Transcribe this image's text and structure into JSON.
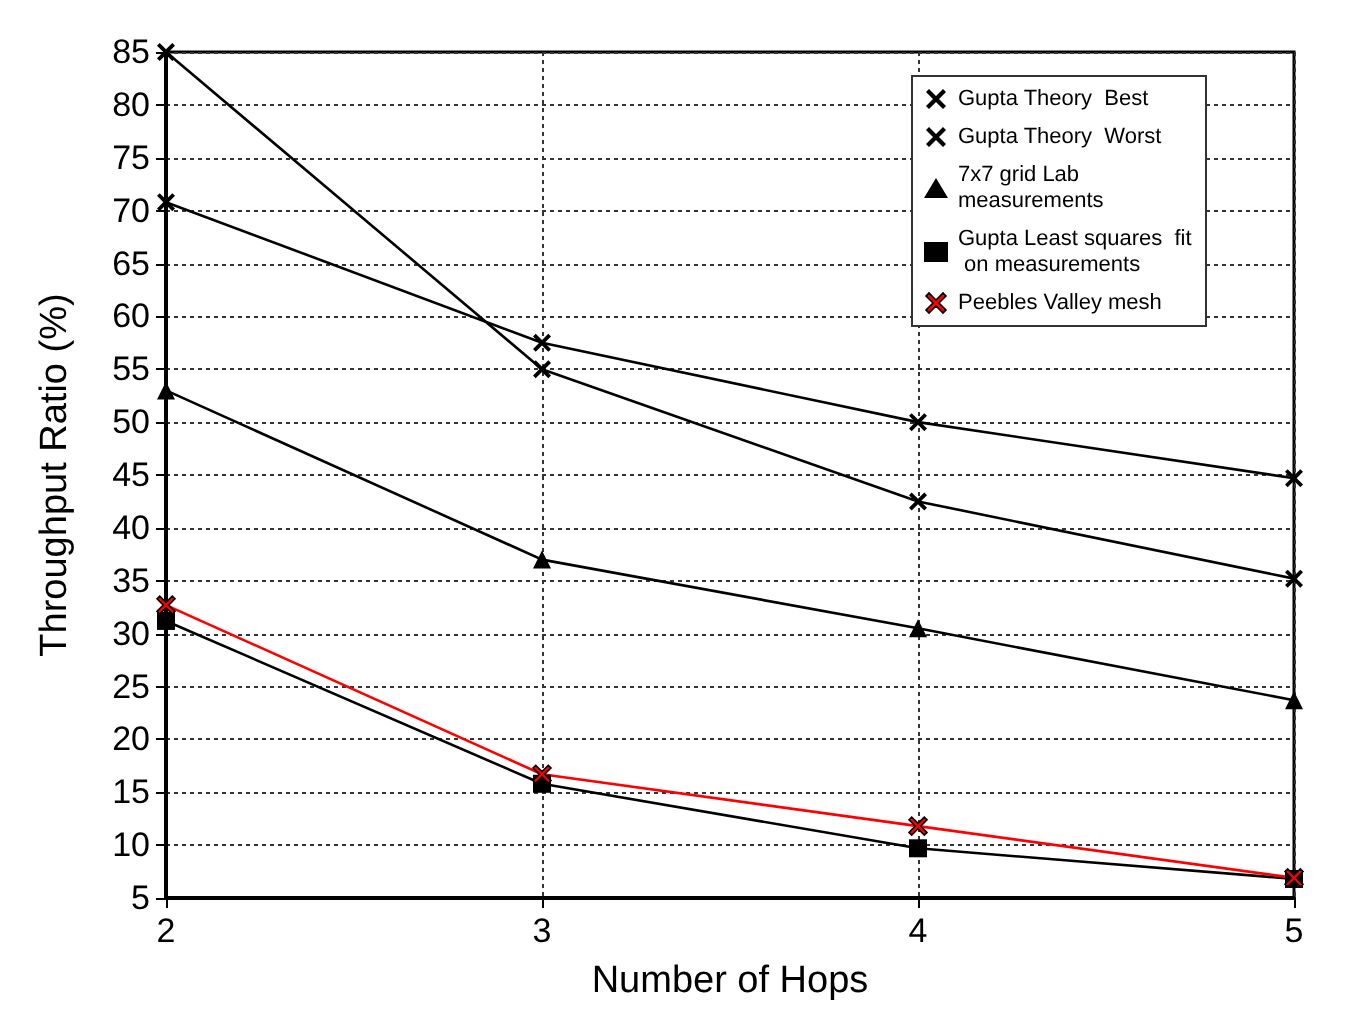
{
  "chart_data": {
    "type": "line",
    "xlabel": "Number of Hops",
    "ylabel": "Throughput Ratio (%)",
    "x": [
      2,
      3,
      4,
      5
    ],
    "series": [
      {
        "name": "Gupta Theory  Best",
        "color": "#000000",
        "marker": "cross",
        "values": [
          70.8,
          57.5,
          50,
          44.7
        ]
      },
      {
        "name": "Gupta Theory  Worst",
        "color": "#000000",
        "marker": "cross",
        "values": [
          85,
          55,
          42.5,
          35.2
        ]
      },
      {
        "name": "7x7 grid Lab  measurements",
        "color": "#000000",
        "marker": "triangle",
        "values": [
          53,
          37,
          30.5,
          23.7
        ]
      },
      {
        "name": "Gupta Least squares  fit on measurements",
        "color": "#000000",
        "marker": "square",
        "values": [
          31.2,
          15.8,
          9.7,
          6.8
        ]
      },
      {
        "name": "Peebles Valley mesh",
        "color": "#ff0000",
        "marker": "cross",
        "values": [
          32.7,
          16.7,
          11.8,
          6.9
        ]
      }
    ],
    "xlim": [
      2,
      5
    ],
    "xticks": [
      2,
      3,
      4,
      5
    ],
    "ylim": [
      5,
      85
    ],
    "yticks": [
      5,
      10,
      15,
      20,
      25,
      30,
      35,
      40,
      45,
      50,
      55,
      60,
      65,
      70,
      75,
      80,
      85
    ],
    "grid": true,
    "legend": "top right",
    "line_style": "solid"
  }
}
